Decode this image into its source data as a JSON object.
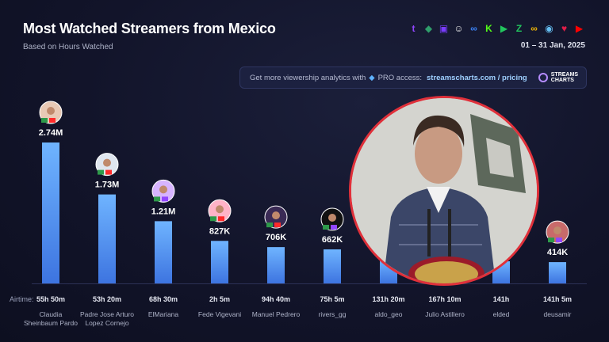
{
  "header": {
    "title": "Most Watched Streamers from Mexico",
    "subtitle": "Based on Hours Watched",
    "date_range": "01 – 31 Jan, 2025"
  },
  "platforms": [
    {
      "name": "twitch-icon",
      "color": "#9146ff",
      "glyph": "t"
    },
    {
      "name": "kick-alt-icon",
      "color": "#2f9e6b",
      "glyph": "◆"
    },
    {
      "name": "purple-platform-icon",
      "color": "#7a3cff",
      "glyph": "▣"
    },
    {
      "name": "ghost-icon",
      "color": "#e6e6e6",
      "glyph": "☺"
    },
    {
      "name": "infinity-icon",
      "color": "#3b82f6",
      "glyph": "∞"
    },
    {
      "name": "kick-icon",
      "color": "#53fc18",
      "glyph": "K"
    },
    {
      "name": "play-icon",
      "color": "#22c55e",
      "glyph": "▶"
    },
    {
      "name": "zeta-icon",
      "color": "#22c55e",
      "glyph": "Z"
    },
    {
      "name": "loop-icon",
      "color": "#eab308",
      "glyph": "∞"
    },
    {
      "name": "steam-icon",
      "color": "#66c0f4",
      "glyph": "◉"
    },
    {
      "name": "heart-icon",
      "color": "#e11d48",
      "glyph": "♥"
    },
    {
      "name": "youtube-icon",
      "color": "#ff0000",
      "glyph": "▶"
    }
  ],
  "promo": {
    "text": "Get more viewership analytics with",
    "pro": "PRO access:",
    "link": "streamscharts.com / pricing",
    "brand_line1": "STREAMS",
    "brand_line2": "CHARTS"
  },
  "airtime_label": "Airtime:",
  "chart_data": {
    "type": "bar",
    "categories": [
      "Claudia Sheinbaum Pardo",
      "Padre Jose Arturo Lopez Cornejo",
      "ElMariana",
      "Fede Vigevani",
      "Manuel Pedrero",
      "rivers_gg",
      "aldo_geo",
      "Julio Astillero",
      "elded",
      "deusamir"
    ],
    "values": [
      2740000,
      1730000,
      1210000,
      827000,
      706000,
      662000,
      470000,
      450000,
      430000,
      414000
    ],
    "value_labels": [
      "2.74M",
      "1.73M",
      "1.21M",
      "827K",
      "706K",
      "662K",
      "",
      "",
      "",
      "414K"
    ],
    "airtime": [
      "55h 50m",
      "53h 20m",
      "68h 30m",
      "2h 5m",
      "94h 40m",
      "75h 5m",
      "131h 20m",
      "167h 10m",
      "141h",
      "141h 5m"
    ],
    "name_lines": [
      [
        "Claudia",
        "Sheinbaum Pardo"
      ],
      [
        "Padre Jose Arturo",
        "Lopez Cornejo"
      ],
      [
        "ElMariana"
      ],
      [
        "Fede Vigevani"
      ],
      [
        "Manuel Pedrero"
      ],
      [
        "rivers_gg"
      ],
      [
        "aldo_geo"
      ],
      [
        "Julio Astillero"
      ],
      [
        "elded"
      ],
      [
        "deusamir"
      ]
    ],
    "avatars": [
      true,
      true,
      true,
      true,
      true,
      true,
      false,
      false,
      false,
      true
    ],
    "ylabel": "",
    "xlabel": "",
    "bar_color_top": "#6fb4ff",
    "bar_color_bottom": "#3d74e0"
  }
}
